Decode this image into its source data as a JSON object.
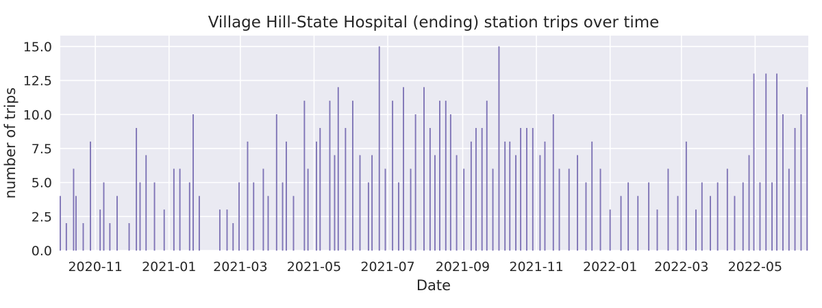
{
  "chart_data": {
    "type": "bar",
    "title": "Village Hill-State Hospital (ending) station trips over time",
    "xlabel": "Date",
    "ylabel": "number of trips",
    "ylim": [
      0,
      15.8
    ],
    "y_ticks": [
      "0.0",
      "2.5",
      "5.0",
      "7.5",
      "10.0",
      "12.5",
      "15.0"
    ],
    "x_range": [
      "2020-10-03",
      "2022-06-14"
    ],
    "x_ticks": [
      "2020-11",
      "2021-01",
      "2021-03",
      "2021-05",
      "2021-07",
      "2021-09",
      "2021-11",
      "2022-01",
      "2022-03",
      "2022-05"
    ],
    "grid": true,
    "background": "#eaeaf2",
    "bar_color": "#8075b8",
    "bar_edge": "#6a5fa8",
    "series": [
      {
        "x": [
          "2020-10-03",
          "2020-10-08",
          "2020-10-14",
          "2020-10-16",
          "2020-10-22",
          "2020-10-28",
          "2020-11-05",
          "2020-11-08",
          "2020-11-13",
          "2020-11-19",
          "2020-11-29",
          "2020-12-05",
          "2020-12-08",
          "2020-12-13",
          "2020-12-20",
          "2020-12-28",
          "2021-01-05",
          "2021-01-10",
          "2021-01-18",
          "2021-01-21",
          "2021-01-26",
          "2021-02-12",
          "2021-02-18",
          "2021-02-23",
          "2021-02-28",
          "2021-03-07",
          "2021-03-12",
          "2021-03-20",
          "2021-03-24",
          "2021-03-31",
          "2021-04-05",
          "2021-04-08",
          "2021-04-14",
          "2021-04-23",
          "2021-04-26",
          "2021-05-03",
          "2021-05-06",
          "2021-05-14",
          "2021-05-18",
          "2021-05-21",
          "2021-05-27",
          "2021-06-02",
          "2021-06-08",
          "2021-06-15",
          "2021-06-18",
          "2021-06-24",
          "2021-06-29",
          "2021-07-05",
          "2021-07-10",
          "2021-07-14",
          "2021-07-20",
          "2021-07-24",
          "2021-07-31",
          "2021-08-05",
          "2021-08-09",
          "2021-08-13",
          "2021-08-18",
          "2021-08-22",
          "2021-08-27",
          "2021-09-02",
          "2021-09-08",
          "2021-09-12",
          "2021-09-17",
          "2021-09-21",
          "2021-09-26",
          "2021-10-01",
          "2021-10-06",
          "2021-10-10",
          "2021-10-15",
          "2021-10-19",
          "2021-10-24",
          "2021-10-29",
          "2021-11-04",
          "2021-11-08",
          "2021-11-15",
          "2021-11-20",
          "2021-11-28",
          "2021-12-05",
          "2021-12-12",
          "2021-12-17",
          "2021-12-24",
          "2022-01-01",
          "2022-01-10",
          "2022-01-16",
          "2022-01-24",
          "2022-02-02",
          "2022-02-09",
          "2022-02-18",
          "2022-02-26",
          "2022-03-05",
          "2022-03-13",
          "2022-03-18",
          "2022-03-25",
          "2022-03-31",
          "2022-04-08",
          "2022-04-14",
          "2022-04-21",
          "2022-04-26",
          "2022-04-30",
          "2022-05-05",
          "2022-05-10",
          "2022-05-15",
          "2022-05-19",
          "2022-05-24",
          "2022-05-29",
          "2022-06-03",
          "2022-06-08",
          "2022-06-13"
        ],
        "values": [
          4,
          2,
          6,
          4,
          2,
          8,
          3,
          5,
          2,
          4,
          2,
          9,
          5,
          7,
          5,
          3,
          6,
          6,
          5,
          10,
          4,
          3,
          3,
          2,
          5,
          8,
          5,
          6,
          4,
          10,
          5,
          8,
          4,
          11,
          6,
          8,
          9,
          11,
          7,
          12,
          9,
          11,
          7,
          5,
          7,
          15,
          6,
          11,
          5,
          12,
          6,
          10,
          12,
          9,
          7,
          11,
          11,
          10,
          7,
          6,
          8,
          9,
          9,
          11,
          6,
          15,
          8,
          8,
          7,
          9,
          9,
          9,
          7,
          8,
          10,
          6,
          6,
          7,
          5,
          8,
          6,
          3,
          4,
          5,
          4,
          5,
          3,
          6,
          4,
          8,
          3,
          5,
          4,
          5,
          6,
          4,
          5,
          7,
          13,
          5,
          13,
          5,
          13,
          10,
          6,
          9,
          10,
          12
        ]
      }
    ]
  }
}
